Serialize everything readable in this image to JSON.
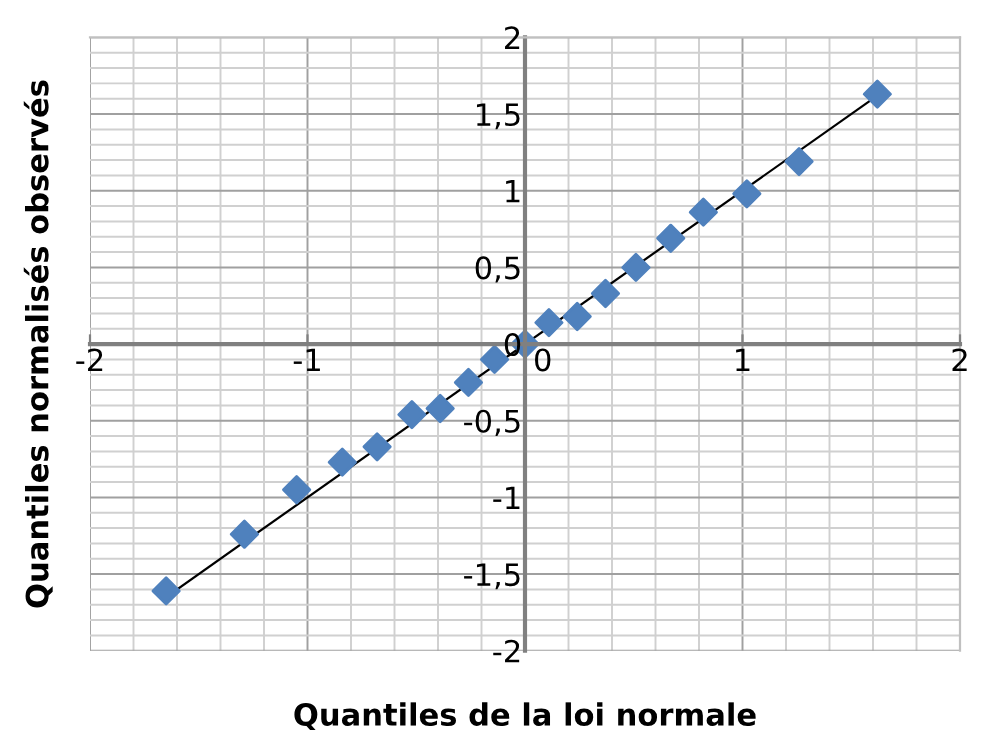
{
  "chart_data": {
    "type": "scatter",
    "xlabel": "Quantiles de la loi normale",
    "ylabel": "Quantiles normalisés observés",
    "xlim": [
      -2,
      2
    ],
    "ylim": [
      -2,
      2
    ],
    "xticks": [
      {
        "value": -2,
        "label": "-2"
      },
      {
        "value": -1,
        "label": "-1"
      },
      {
        "value": 0,
        "label": "0"
      },
      {
        "value": 1,
        "label": "1"
      },
      {
        "value": 2,
        "label": "2"
      }
    ],
    "yticks": [
      {
        "value": -2,
        "label": "-2"
      },
      {
        "value": -1.5,
        "label": "-1,5"
      },
      {
        "value": -1,
        "label": "-1"
      },
      {
        "value": -0.5,
        "label": "-0,5"
      },
      {
        "value": 0,
        "label": "0"
      },
      {
        "value": 0.5,
        "label": "0,5"
      },
      {
        "value": 1,
        "label": "1"
      },
      {
        "value": 1.5,
        "label": "1,5"
      },
      {
        "value": 2,
        "label": "2"
      }
    ],
    "grid": true,
    "marker": "diamond",
    "series": [
      {
        "color": "#4f81bd",
        "x": [
          -1.65,
          -1.29,
          -1.05,
          -0.84,
          -0.68,
          -0.52,
          -0.39,
          -0.26,
          -0.14,
          0,
          0.11,
          0.24,
          0.37,
          0.51,
          0.67,
          0.82,
          1.02,
          1.26,
          1.62
        ],
        "values": [
          -1.61,
          -1.24,
          -0.95,
          -0.77,
          -0.67,
          -0.46,
          -0.42,
          -0.25,
          -0.1,
          0,
          0.14,
          0.18,
          0.33,
          0.5,
          0.69,
          0.86,
          0.98,
          1.19,
          1.63
        ]
      },
      {
        "type": "line",
        "color": "#000000",
        "marker": "none",
        "line_style": "solid",
        "x": [
          -1.65,
          1.65
        ],
        "values": [
          -1.65,
          1.65
        ]
      }
    ]
  }
}
